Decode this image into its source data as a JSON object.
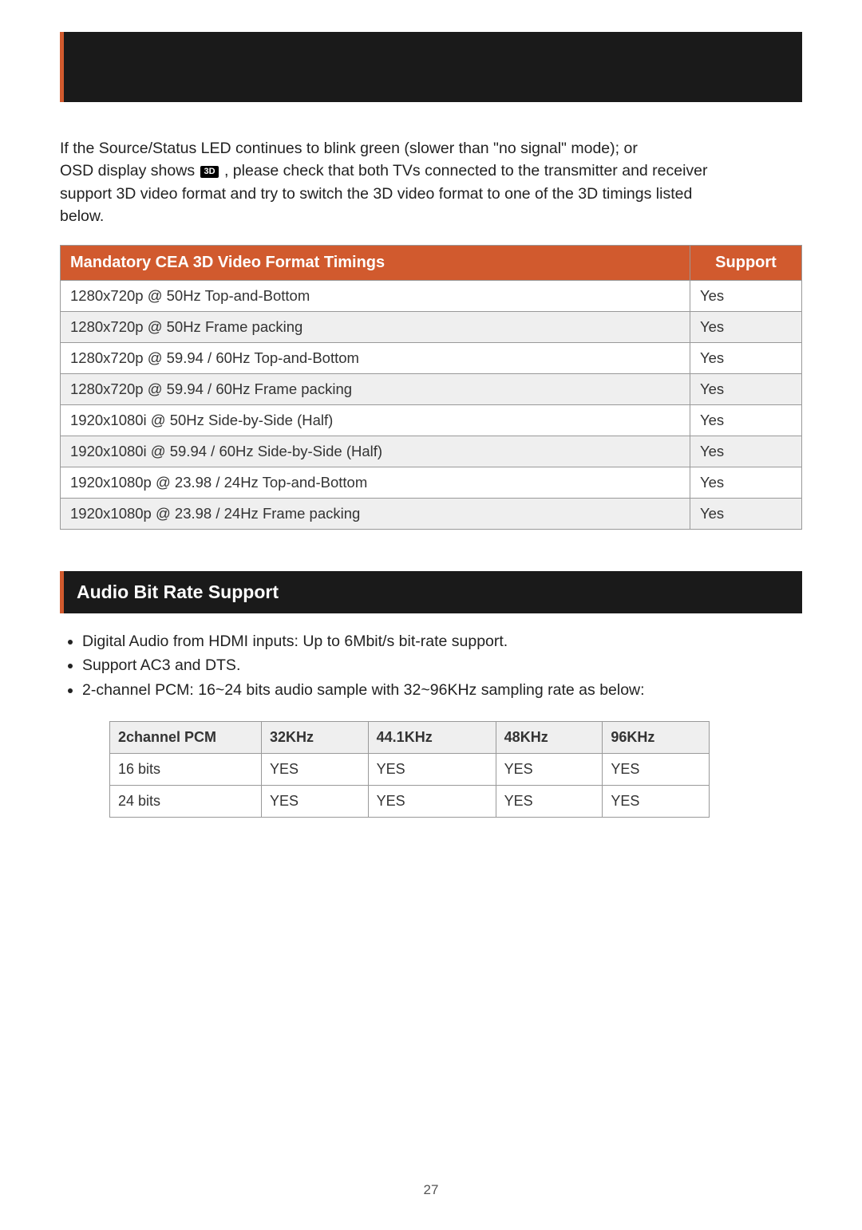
{
  "page_number": "27",
  "intro": {
    "line1": "If the Source/Status LED continues to blink green (slower than \"no signal\" mode); or",
    "line2a": "OSD display shows ",
    "icon_label": "3D",
    "line2b": " , please check that both TVs connected to the transmitter and receiver",
    "line3": "support 3D video format and try to switch the 3D video format to one of the 3D timings listed",
    "line4": "below."
  },
  "table1": {
    "header_col1": "Mandatory CEA 3D Video Format Timings",
    "header_col2": "Support",
    "rows": [
      {
        "format": "1280x720p @ 50Hz  Top-and-Bottom",
        "support": "Yes",
        "alt": false
      },
      {
        "format": "1280x720p @ 50Hz  Frame packing",
        "support": "Yes",
        "alt": true
      },
      {
        "format": "1280x720p @ 59.94 / 60Hz  Top-and-Bottom",
        "support": "Yes",
        "alt": false
      },
      {
        "format": "1280x720p @ 59.94 / 60Hz  Frame packing",
        "support": "Yes",
        "alt": true
      },
      {
        "format": "1920x1080i @ 50Hz  Side-by-Side (Half)",
        "support": "Yes",
        "alt": false
      },
      {
        "format": "1920x1080i @ 59.94 / 60Hz  Side-by-Side (Half)",
        "support": "Yes",
        "alt": true
      },
      {
        "format": "1920x1080p @ 23.98 / 24Hz  Top-and-Bottom",
        "support": "Yes",
        "alt": false
      },
      {
        "format": "1920x1080p @ 23.98 / 24Hz  Frame packing",
        "support": "Yes",
        "alt": true
      }
    ]
  },
  "section_header": "Audio Bit Rate Support",
  "bullets": [
    "Digital Audio from HDMI inputs: Up to 6Mbit/s bit-rate support.",
    "Support AC3 and DTS.",
    "2-channel PCM: 16~24 bits audio sample with 32~96KHz sampling rate as below:"
  ],
  "table2": {
    "headers": [
      "2channel PCM",
      "32KHz",
      "44.1KHz",
      "48KHz",
      "96KHz"
    ],
    "rows": [
      [
        "16 bits",
        "YES",
        "YES",
        "YES",
        "YES"
      ],
      [
        "24 bits",
        "YES",
        "YES",
        "YES",
        "YES"
      ]
    ]
  },
  "colors": {
    "accent": "#d15a2e",
    "dark": "#1a1a1a",
    "alt_row": "#efefef",
    "border": "#999"
  }
}
